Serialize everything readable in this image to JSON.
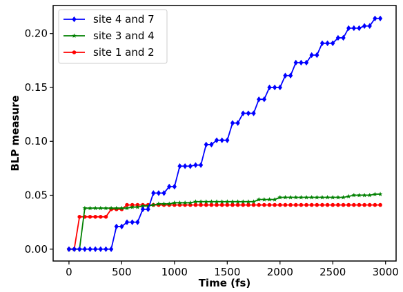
{
  "chart_data": {
    "type": "line",
    "xlabel": "Time (fs)",
    "ylabel": "BLP measure",
    "xlim": [
      -150,
      3100
    ],
    "ylim": [
      -0.011,
      0.226
    ],
    "xticks": [
      0,
      500,
      1000,
      1500,
      2000,
      2500,
      3000
    ],
    "xtick_labels": [
      "0",
      "500",
      "1000",
      "1500",
      "2000",
      "2500",
      "3000"
    ],
    "yticks": [
      0.0,
      0.05,
      0.1,
      0.15,
      0.2
    ],
    "ytick_labels": [
      "0.00",
      "0.05",
      "0.10",
      "0.15",
      "0.20"
    ],
    "grid": false,
    "legend_position": "top-left",
    "series": [
      {
        "name": "site 4 and 7",
        "color": "#0000ff",
        "marker": "diamond",
        "x": [
          0,
          50,
          100,
          150,
          200,
          250,
          300,
          350,
          400,
          450,
          500,
          550,
          600,
          650,
          700,
          750,
          800,
          850,
          900,
          950,
          1000,
          1050,
          1100,
          1150,
          1200,
          1250,
          1300,
          1350,
          1400,
          1450,
          1500,
          1550,
          1600,
          1650,
          1700,
          1750,
          1800,
          1850,
          1900,
          1950,
          2000,
          2050,
          2100,
          2150,
          2200,
          2250,
          2300,
          2350,
          2400,
          2450,
          2500,
          2550,
          2600,
          2650,
          2700,
          2750,
          2800,
          2850,
          2900,
          2950
        ],
        "y": [
          0,
          0,
          0,
          0,
          0,
          0,
          0,
          0,
          0,
          0.021,
          0.021,
          0.025,
          0.025,
          0.025,
          0.037,
          0.037,
          0.052,
          0.052,
          0.052,
          0.058,
          0.058,
          0.077,
          0.077,
          0.077,
          0.078,
          0.078,
          0.097,
          0.097,
          0.101,
          0.101,
          0.101,
          0.117,
          0.117,
          0.126,
          0.126,
          0.126,
          0.139,
          0.139,
          0.15,
          0.15,
          0.15,
          0.161,
          0.161,
          0.173,
          0.173,
          0.173,
          0.18,
          0.18,
          0.191,
          0.191,
          0.191,
          0.196,
          0.196,
          0.205,
          0.205,
          0.205,
          0.207,
          0.207,
          0.214,
          0.214
        ]
      },
      {
        "name": "site 3 and 4",
        "color": "#008000",
        "marker": "star",
        "x": [
          0,
          50,
          100,
          150,
          200,
          250,
          300,
          350,
          400,
          450,
          500,
          550,
          600,
          650,
          700,
          750,
          800,
          850,
          900,
          950,
          1000,
          1050,
          1100,
          1150,
          1200,
          1250,
          1300,
          1350,
          1400,
          1450,
          1500,
          1550,
          1600,
          1650,
          1700,
          1750,
          1800,
          1850,
          1900,
          1950,
          2000,
          2050,
          2100,
          2150,
          2200,
          2250,
          2300,
          2350,
          2400,
          2450,
          2500,
          2550,
          2600,
          2650,
          2700,
          2750,
          2800,
          2850,
          2900,
          2950
        ],
        "y": [
          0,
          0,
          0,
          0.038,
          0.038,
          0.038,
          0.038,
          0.038,
          0.038,
          0.038,
          0.038,
          0.038,
          0.039,
          0.039,
          0.04,
          0.04,
          0.041,
          0.042,
          0.042,
          0.042,
          0.043,
          0.043,
          0.043,
          0.043,
          0.044,
          0.044,
          0.044,
          0.044,
          0.044,
          0.044,
          0.044,
          0.044,
          0.044,
          0.044,
          0.044,
          0.044,
          0.046,
          0.046,
          0.046,
          0.046,
          0.048,
          0.048,
          0.048,
          0.048,
          0.048,
          0.048,
          0.048,
          0.048,
          0.048,
          0.048,
          0.048,
          0.048,
          0.048,
          0.049,
          0.05,
          0.05,
          0.05,
          0.05,
          0.051,
          0.051
        ]
      },
      {
        "name": "site 1 and 2",
        "color": "#ff0000",
        "marker": "circle",
        "x": [
          0,
          50,
          100,
          150,
          200,
          250,
          300,
          350,
          400,
          450,
          500,
          550,
          600,
          650,
          700,
          750,
          800,
          850,
          900,
          950,
          1000,
          1050,
          1100,
          1150,
          1200,
          1250,
          1300,
          1350,
          1400,
          1450,
          1500,
          1550,
          1600,
          1650,
          1700,
          1750,
          1800,
          1850,
          1900,
          1950,
          2000,
          2050,
          2100,
          2150,
          2200,
          2250,
          2300,
          2350,
          2400,
          2450,
          2500,
          2550,
          2600,
          2650,
          2700,
          2750,
          2800,
          2850,
          2900,
          2950
        ],
        "y": [
          0,
          0,
          0.03,
          0.03,
          0.03,
          0.03,
          0.03,
          0.03,
          0.037,
          0.037,
          0.037,
          0.041,
          0.041,
          0.041,
          0.041,
          0.041,
          0.041,
          0.041,
          0.041,
          0.041,
          0.041,
          0.041,
          0.041,
          0.041,
          0.041,
          0.041,
          0.041,
          0.041,
          0.041,
          0.041,
          0.041,
          0.041,
          0.041,
          0.041,
          0.041,
          0.041,
          0.041,
          0.041,
          0.041,
          0.041,
          0.041,
          0.041,
          0.041,
          0.041,
          0.041,
          0.041,
          0.041,
          0.041,
          0.041,
          0.041,
          0.041,
          0.041,
          0.041,
          0.041,
          0.041,
          0.041,
          0.041,
          0.041,
          0.041,
          0.041
        ]
      }
    ]
  }
}
